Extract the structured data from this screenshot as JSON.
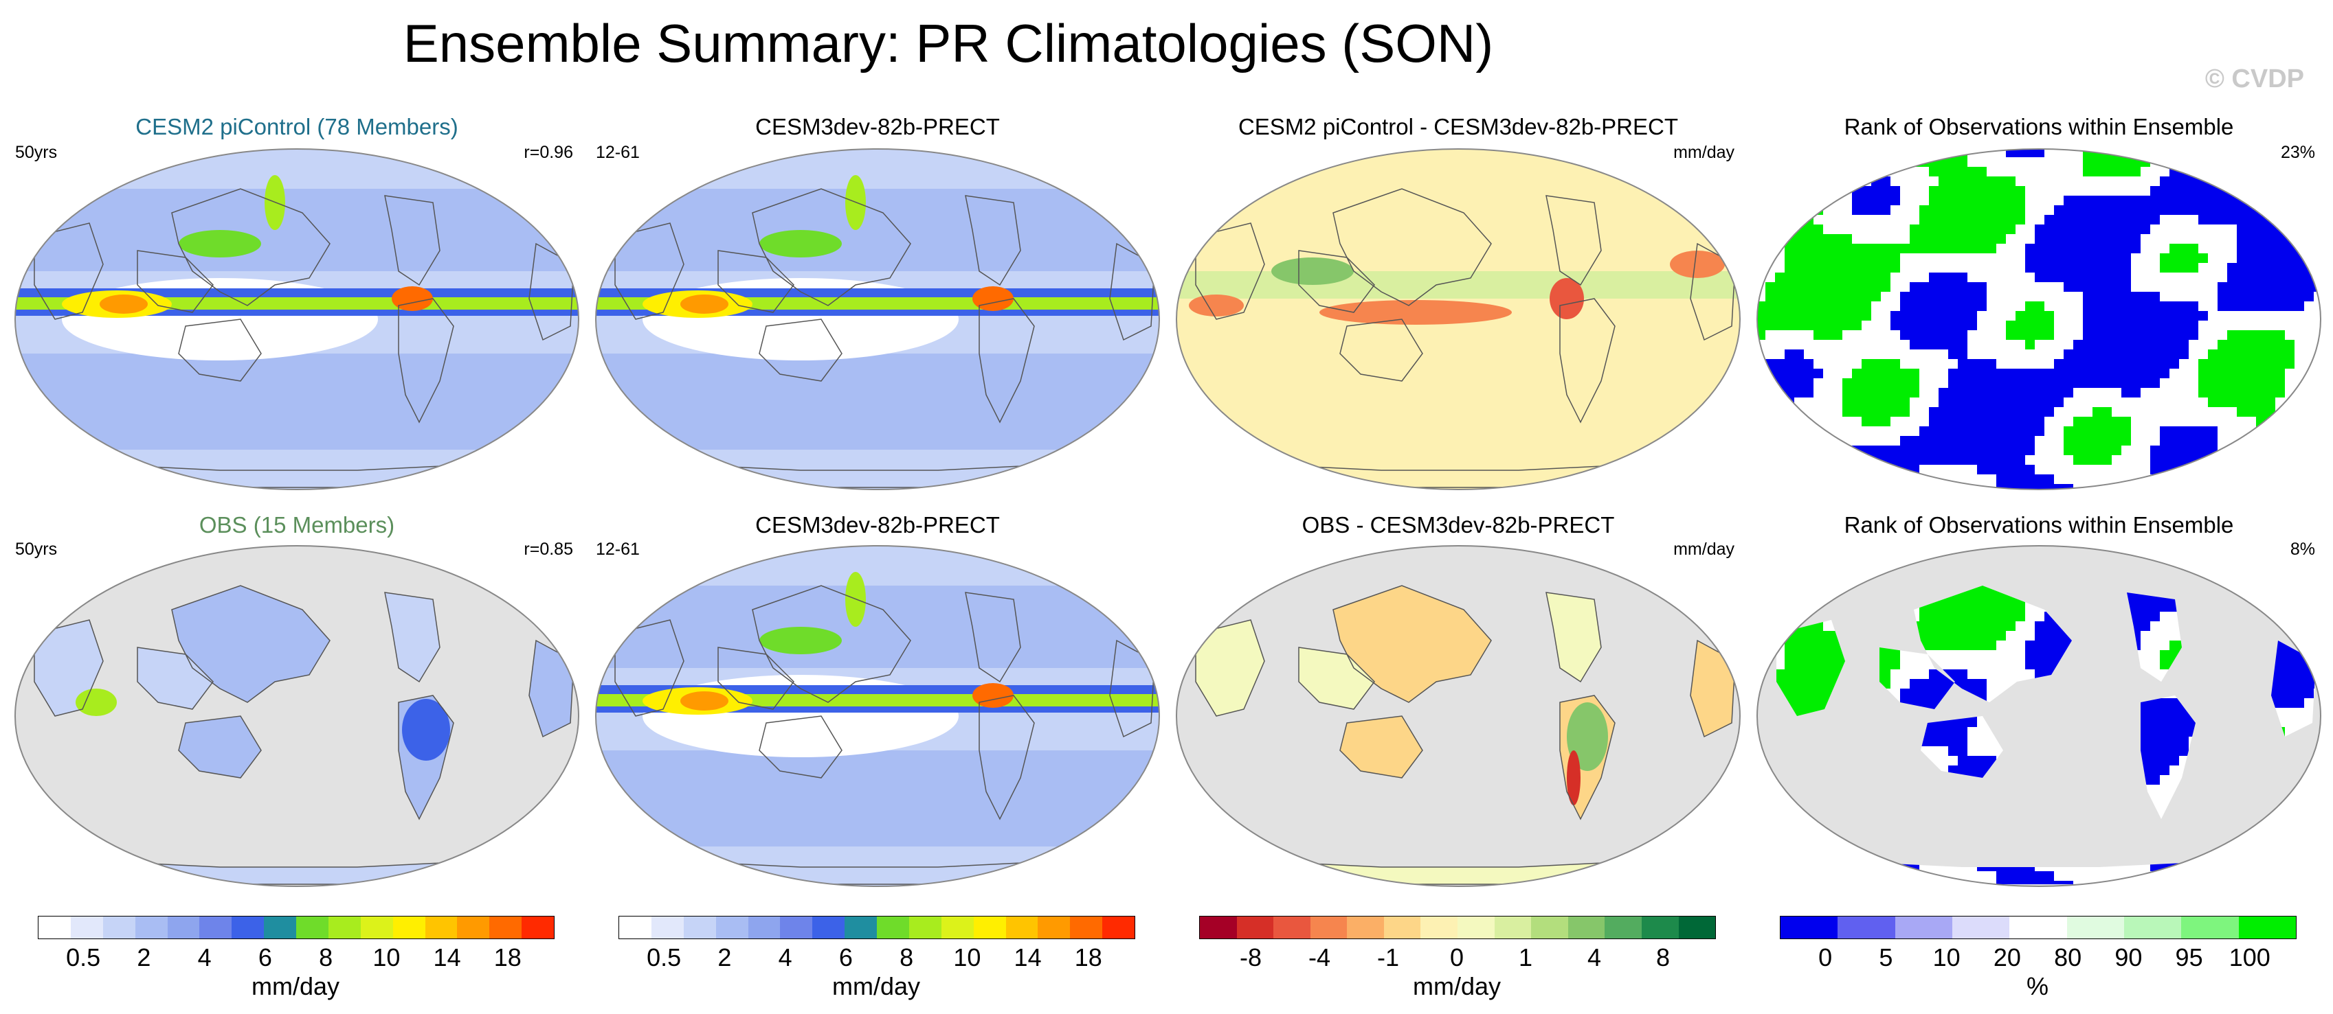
{
  "page_title": "Ensemble Summary: PR Climatologies (SON)",
  "watermark": "© CVDP",
  "colors": {
    "ocean_land_gray": "#e2e2e2",
    "coast": "#555555",
    "cesm_title": "#1f6f8b",
    "obs_title": "#5b8f5b"
  },
  "panels": [
    {
      "id": "r1c1",
      "title": "CESM2 piControl (78 Members)",
      "title_color": "#1f6f8b",
      "left_label": "50yrs",
      "right_label": "r=0.96",
      "kind": "precip"
    },
    {
      "id": "r1c2",
      "title": "CESM3dev-82b-PRECT",
      "title_color": "#000000",
      "left_label": "12-61",
      "right_label": "",
      "kind": "precip"
    },
    {
      "id": "r1c3",
      "title": "CESM2 piControl - CESM3dev-82b-PRECT",
      "title_color": "#000000",
      "left_label": "",
      "right_label": "mm/day",
      "kind": "diff"
    },
    {
      "id": "r1c4",
      "title": "Rank of Observations within Ensemble",
      "title_color": "#000000",
      "left_label": "",
      "right_label": "23%",
      "kind": "rank"
    },
    {
      "id": "r2c1",
      "title": "OBS (15 Members)",
      "title_color": "#5b8f5b",
      "left_label": "50yrs",
      "right_label": "r=0.85",
      "kind": "precip_land"
    },
    {
      "id": "r2c2",
      "title": "CESM3dev-82b-PRECT",
      "title_color": "#000000",
      "left_label": "12-61",
      "right_label": "",
      "kind": "precip"
    },
    {
      "id": "r2c3",
      "title": "OBS - CESM3dev-82b-PRECT",
      "title_color": "#000000",
      "left_label": "",
      "right_label": "mm/day",
      "kind": "diff_land"
    },
    {
      "id": "r2c4",
      "title": "Rank of Observations within Ensemble",
      "title_color": "#000000",
      "left_label": "",
      "right_label": "8%",
      "kind": "rank_land"
    }
  ],
  "chart_data": [
    {
      "type": "heatmap",
      "title": "Precipitation colorbar",
      "unit": "mm/day",
      "levels": [
        0.5,
        1,
        2,
        3,
        4,
        5,
        6,
        7,
        8,
        9,
        10,
        12,
        14,
        16,
        18
      ],
      "tick_labels": [
        "0.5",
        "2",
        "4",
        "6",
        "8",
        "10",
        "14",
        "18"
      ],
      "colors": [
        "#ffffff",
        "#e2e8fb",
        "#c6d4f7",
        "#a9bdf3",
        "#8ea5ee",
        "#6e84ea",
        "#3c62e8",
        "#1f8ea0",
        "#6fdc2a",
        "#a8ec1e",
        "#dcf21a",
        "#ffef00",
        "#ffc400",
        "#ff9a00",
        "#ff6a00",
        "#ff2a00"
      ]
    },
    {
      "type": "heatmap",
      "title": "Difference colorbar",
      "unit": "mm/day",
      "tick_labels": [
        "-8",
        "-4",
        "-1",
        "0",
        "1",
        "4",
        "8"
      ],
      "colors": [
        "#a50026",
        "#d62f27",
        "#e9573e",
        "#f6854e",
        "#fbaf66",
        "#fdd688",
        "#fdf1b3",
        "#f4f9bf",
        "#d9efa0",
        "#b3de7d",
        "#86c66a",
        "#53ac5f",
        "#1d8a4b",
        "#006837"
      ]
    },
    {
      "type": "heatmap",
      "title": "Rank colorbar",
      "unit": "%",
      "tick_labels": [
        "0",
        "5",
        "10",
        "20",
        "80",
        "90",
        "95",
        "100"
      ],
      "colors": [
        "#0000ee",
        "#6060f0",
        "#a8a8f5",
        "#dcdcfb",
        "#ffffff",
        "#e0fbe0",
        "#b9f7b9",
        "#7ef57e",
        "#00ee00"
      ]
    }
  ]
}
